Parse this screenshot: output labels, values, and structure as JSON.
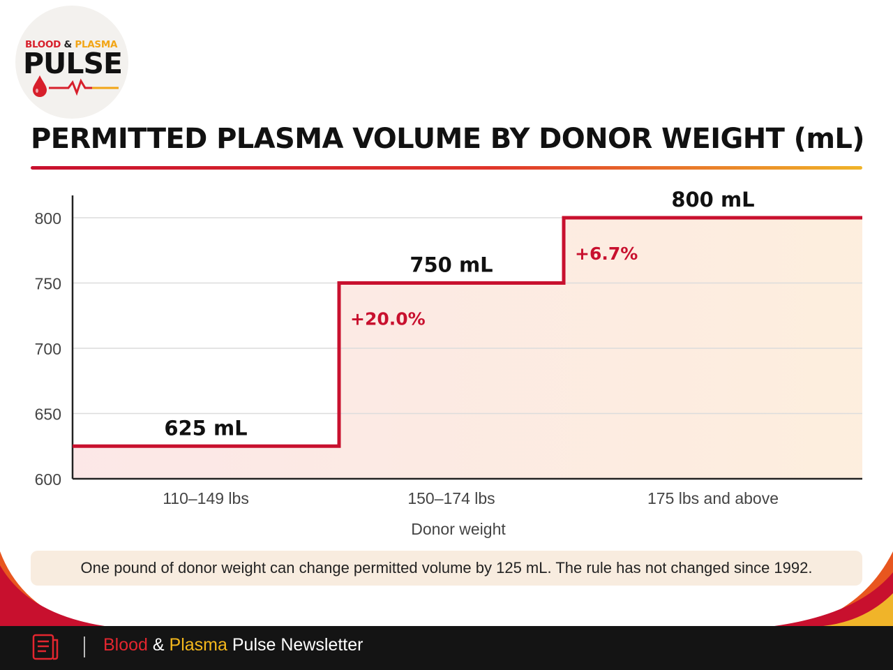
{
  "logo": {
    "word1": "BLOOD",
    "amp": "&",
    "word2": "PLASMA",
    "main": "PULSE"
  },
  "title": "PERMITTED PLASMA VOLUME BY DONOR WEIGHT (mL)",
  "colors": {
    "accent": "#c8102e",
    "gold": "#f0b429",
    "dark": "#141414"
  },
  "chart_data": {
    "type": "step",
    "categories": [
      "110–149 lbs",
      "150–174 lbs",
      "175 lbs and above"
    ],
    "values": [
      625,
      750,
      800
    ],
    "value_labels": [
      "625 mL",
      "750 mL",
      "800 mL"
    ],
    "change_labels": [
      "",
      "+20.0%",
      "+6.7%"
    ],
    "xlabel": "Donor weight",
    "ylabel": "",
    "ylim": [
      600,
      800
    ],
    "yticks": [
      600,
      650,
      700,
      750,
      800
    ],
    "grid": true,
    "legend": "none"
  },
  "note": "One pound of donor weight can change permitted volume by 125 mL. The rule has not changed since 1992.",
  "footer": {
    "blood": "Blood",
    "amp": "&",
    "plasma": "Plasma",
    "rest": "Pulse Newsletter",
    "icon": "newsletter-document-icon"
  }
}
